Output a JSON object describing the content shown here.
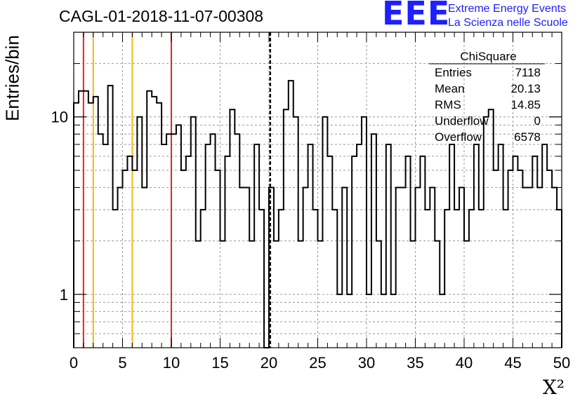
{
  "title": "CAGL-01-2018-11-07-00308",
  "logo": {
    "mark": "EEE",
    "line1": "Extreme Energy Events",
    "line2": "La Scienza nelle Scuole"
  },
  "colors": {
    "histogram": "#000000",
    "red_line": "#e8231e",
    "yellow_line": "#f2b81a",
    "grid": "#9a9a9a",
    "logo_blue": "#1e1eff"
  },
  "stats_box": {
    "title": "ChiSquare",
    "rows": [
      {
        "label": "Entries",
        "value": "7118"
      },
      {
        "label": "Mean",
        "value": "20.13"
      },
      {
        "label": "RMS",
        "value": "14.85"
      },
      {
        "label": "Underflow",
        "value": "0"
      },
      {
        "label": "Overflow",
        "value": "6578"
      }
    ]
  },
  "chart_data": {
    "type": "histogram",
    "title": "CAGL-01-2018-11-07-00308",
    "xlabel": "X²",
    "ylabel": "Entries/bin",
    "xlim": [
      0,
      50
    ],
    "ylim": [
      0.5,
      30
    ],
    "y_scale": "log",
    "grid": true,
    "bin_width": 0.5,
    "x_ticks": [
      0,
      5,
      10,
      15,
      20,
      25,
      30,
      35,
      40,
      45,
      50
    ],
    "y_ticks": [
      1,
      10
    ],
    "counts": [
      12,
      14,
      14,
      12,
      13,
      8,
      7,
      15,
      3,
      4,
      5,
      6,
      5,
      10,
      4,
      14,
      13,
      12,
      7,
      8,
      8,
      9,
      5,
      6,
      10,
      2,
      3,
      7,
      8,
      5,
      2,
      6,
      11,
      8,
      4,
      4,
      2,
      7,
      3,
      0.5,
      4,
      2,
      3,
      11,
      16,
      10,
      2,
      4,
      7,
      3,
      2,
      10,
      6,
      3,
      1,
      4,
      1,
      6,
      7,
      10,
      1,
      8,
      2,
      1,
      7,
      1,
      4,
      4,
      6,
      2,
      4,
      6,
      3,
      4,
      2,
      1,
      3,
      7,
      3,
      4,
      2,
      3,
      7,
      3,
      10,
      11,
      5,
      7,
      3,
      5,
      6,
      5,
      4,
      4,
      6,
      4,
      7,
      5,
      4,
      3
    ]
  },
  "vertical_lines": [
    {
      "x": 1,
      "color_key": "red_line",
      "style": "solid"
    },
    {
      "x": 2,
      "color_key": "yellow_line",
      "style": "solid"
    },
    {
      "x": 6,
      "color_key": "yellow_line",
      "style": "solid"
    },
    {
      "x": 10,
      "color_key": "red_line",
      "style": "solid"
    },
    {
      "x": 20.13,
      "color_key": "histogram",
      "style": "dashed"
    }
  ]
}
